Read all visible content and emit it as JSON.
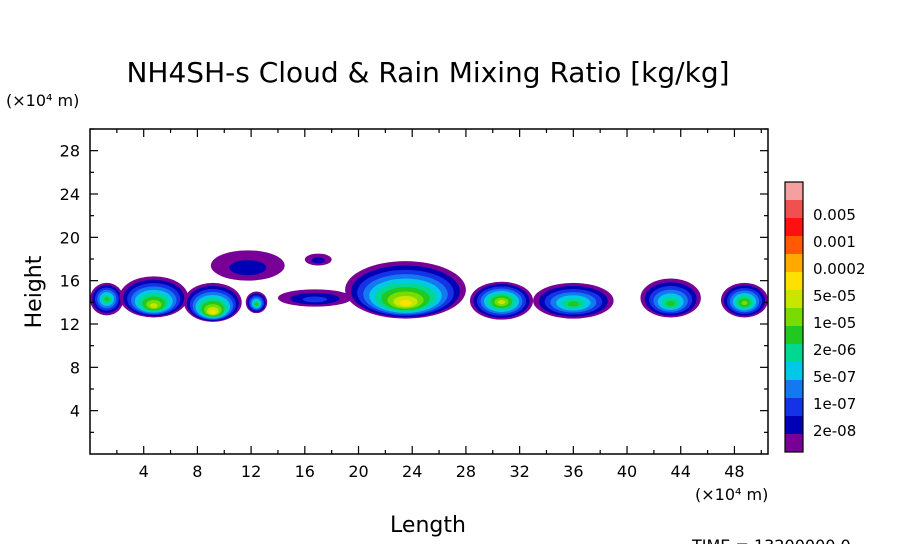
{
  "chart_data": {
    "type": "heatmap",
    "title": "NH4SH-s Cloud & Rain Mixing Ratio [kg/kg]",
    "xlabel": "Length",
    "ylabel": "Height",
    "x_unit": "(×10⁴ m)",
    "y_unit": "(×10⁴ m)",
    "xlim": [
      0,
      50.5
    ],
    "ylim": [
      0,
      30
    ],
    "x_ticks": [
      "4",
      "8",
      "12",
      "16",
      "20",
      "24",
      "28",
      "32",
      "36",
      "40",
      "44",
      "48"
    ],
    "y_ticks": [
      "4",
      "8",
      "12",
      "16",
      "20",
      "24",
      "28"
    ],
    "colorbar": {
      "labels": [
        "0.005",
        "0.001",
        "0.0002",
        "5e-05",
        "1e-05",
        "2e-06",
        "5e-07",
        "1e-07",
        "2e-08"
      ],
      "colors": [
        "#f4a0a0",
        "#f05050",
        "#ff1010",
        "#ff5a00",
        "#ffa800",
        "#ffe000",
        "#c8e600",
        "#78dc00",
        "#20c820",
        "#00d890",
        "#00c8e6",
        "#1478f0",
        "#1432e6",
        "#0000b4",
        "#780096"
      ]
    },
    "blobs": [
      {
        "x0": 0.0,
        "x1": 2.5,
        "yb": 12.8,
        "yt": 15.8,
        "core": 14.3,
        "peak": 6
      },
      {
        "x0": 2.2,
        "x1": 7.3,
        "yb": 12.6,
        "yt": 16.4,
        "core": 13.6,
        "peak": 8
      },
      {
        "x0": 7.0,
        "x1": 11.3,
        "yb": 12.2,
        "yt": 15.8,
        "core": 13.0,
        "peak": 9
      },
      {
        "x0": 11.6,
        "x1": 13.2,
        "yb": 13.0,
        "yt": 15.0,
        "core": 13.8,
        "peak": 6
      },
      {
        "x0": 14.0,
        "x1": 19.5,
        "yb": 13.6,
        "yt": 15.2,
        "core": 14.2,
        "peak": 2
      },
      {
        "x0": 19.0,
        "x1": 28.0,
        "yb": 12.5,
        "yt": 17.8,
        "core": 13.8,
        "peak": 9
      },
      {
        "x0": 28.3,
        "x1": 33.0,
        "yb": 12.4,
        "yt": 15.9,
        "core": 14.0,
        "peak": 8
      },
      {
        "x0": 33.0,
        "x1": 39.0,
        "yb": 12.5,
        "yt": 15.8,
        "core": 13.8,
        "peak": 6
      },
      {
        "x0": 41.0,
        "x1": 45.5,
        "yb": 12.6,
        "yt": 16.2,
        "core": 13.8,
        "peak": 6
      },
      {
        "x0": 47.0,
        "x1": 50.5,
        "yb": 12.6,
        "yt": 15.8,
        "core": 13.9,
        "peak": 7
      },
      {
        "x0": 9.0,
        "x1": 14.5,
        "yb": 16.0,
        "yt": 18.8,
        "core": 17.0,
        "peak": 1
      },
      {
        "x0": 16.0,
        "x1": 18.0,
        "yb": 17.4,
        "yt": 18.5,
        "core": 17.8,
        "peak": 1
      }
    ]
  },
  "time_label": "TIME = 13200000.0"
}
